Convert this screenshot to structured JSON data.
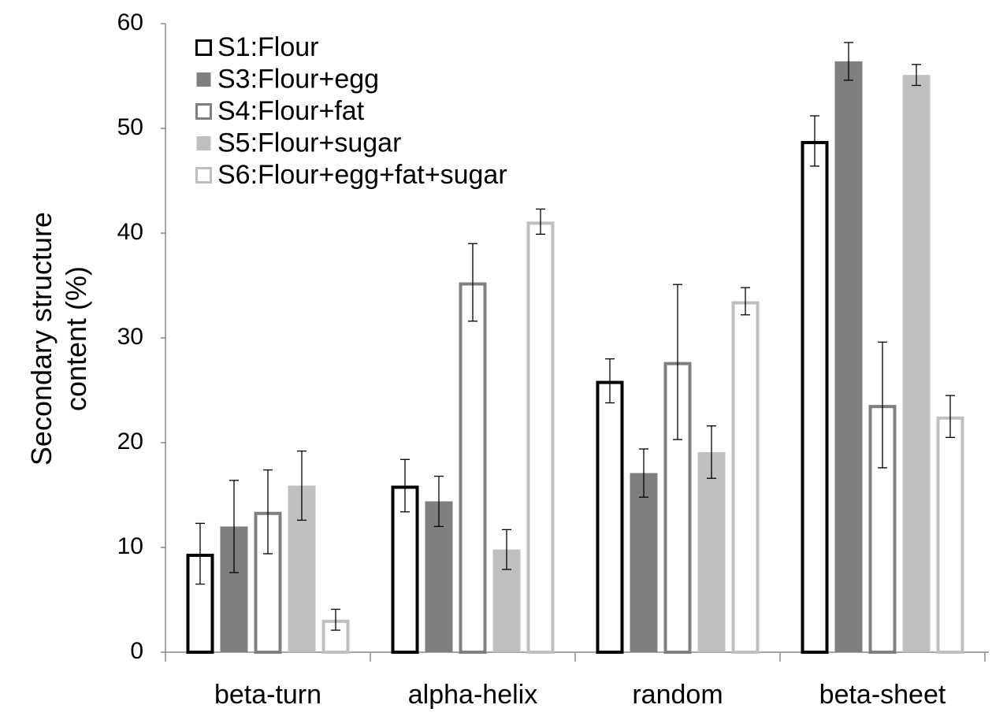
{
  "chart_data": {
    "type": "bar",
    "ylabel": "Secondary structure content (%)",
    "categories": [
      "beta-turn",
      "alpha-helix",
      "random",
      "beta-sheet"
    ],
    "ylim": [
      0,
      60
    ],
    "yticks": [
      0,
      10,
      20,
      30,
      40,
      50,
      60
    ],
    "legend": "top-left",
    "series": [
      {
        "name": "S1:Flour",
        "color": "#000000",
        "fill": "#ffffff",
        "values": [
          9.4,
          15.9,
          25.9,
          48.8
        ],
        "errors": [
          2.9,
          2.5,
          2.1,
          2.4
        ]
      },
      {
        "name": "S3:Flour+egg",
        "color": "#7f7f7f",
        "fill": "#7f7f7f",
        "values": [
          12.0,
          14.4,
          17.1,
          56.4
        ],
        "errors": [
          4.4,
          2.4,
          2.3,
          1.8
        ]
      },
      {
        "name": "S4:Flour+fat",
        "color": "#7f7f7f",
        "fill": "#ffffff",
        "values": [
          13.4,
          35.3,
          27.7,
          23.6
        ],
        "errors": [
          4.0,
          3.7,
          7.4,
          6.0
        ]
      },
      {
        "name": "S5:Flour+sugar",
        "color": "#bfbfbf",
        "fill": "#bfbfbf",
        "values": [
          15.9,
          9.8,
          19.1,
          55.1
        ],
        "errors": [
          3.3,
          1.9,
          2.5,
          1.0
        ]
      },
      {
        "name": "S6:Flour+egg+fat+sugar",
        "color": "#bfbfbf",
        "fill": "#ffffff",
        "values": [
          3.1,
          41.1,
          33.5,
          22.5
        ],
        "errors": [
          1.0,
          1.2,
          1.3,
          2.0
        ]
      }
    ]
  }
}
